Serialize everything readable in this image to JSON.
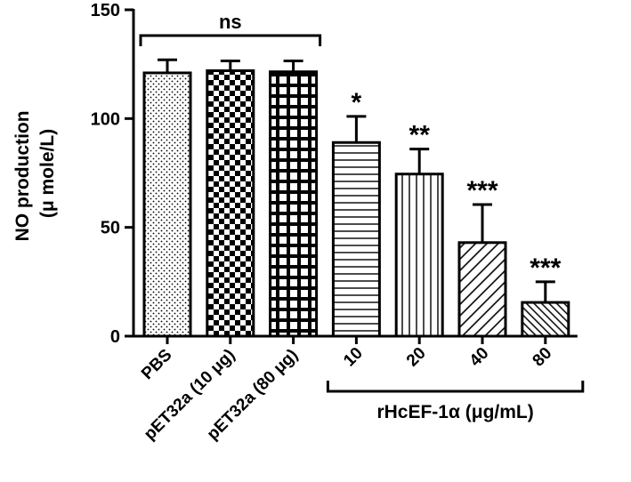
{
  "chart_data": {
    "type": "bar",
    "title": "",
    "ylabel_line1": "NO production",
    "ylabel_line2": "(μ mole/L)",
    "ylim": [
      0,
      150
    ],
    "yticks": [
      "0",
      "50",
      "100",
      "150"
    ],
    "categories": [
      "PBS",
      "pET32a (10 μg)",
      "pET32a (80 μg)",
      "10",
      "20",
      "40",
      "80"
    ],
    "values": [
      121,
      122,
      121.5,
      89,
      74.5,
      43,
      15.5
    ],
    "errors": [
      6,
      4.5,
      5,
      12,
      11.5,
      17.5,
      9.5
    ],
    "patterns": [
      "dots",
      "checker-small",
      "checker-large",
      "horizontal",
      "vertical",
      "diagonal",
      "diagonal-dense"
    ],
    "significance": [
      "",
      "",
      "",
      "*",
      "**",
      "***",
      "***"
    ],
    "group_bracket_top": {
      "label": "ns",
      "from": 0,
      "to": 2
    },
    "group_bracket_bottom": {
      "label": "rHcEF-1α (μg/mL)",
      "from": 3,
      "to": 6
    },
    "colors": {
      "bar_outline": "#000000",
      "pattern": "#000000",
      "background": "#ffffff"
    }
  }
}
